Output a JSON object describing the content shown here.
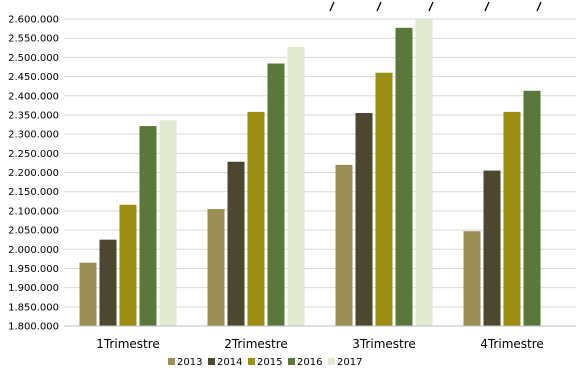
{
  "chart_data": {
    "type": "bar",
    "categories": [
      "1Trimestre",
      "2Trimestre",
      "3Trimestre",
      "4Trimestre"
    ],
    "series": [
      {
        "name": "2013",
        "color": "#9c8f56",
        "values": [
          1965000,
          2105000,
          2220000,
          2047000
        ]
      },
      {
        "name": "2014",
        "color": "#4d4630",
        "values": [
          2025000,
          2228000,
          2355000,
          2205000
        ]
      },
      {
        "name": "2015",
        "color": "#9b8e12",
        "values": [
          2116000,
          2358000,
          2460000,
          2358000
        ]
      },
      {
        "name": "2016",
        "color": "#5a783a",
        "values": [
          2321000,
          2484000,
          2577000,
          2413000
        ]
      },
      {
        "name": "2017",
        "color": "#e1ead0",
        "values": [
          2336000,
          2527000,
          2600000,
          null
        ]
      }
    ],
    "ylim": [
      1800000,
      2600000
    ],
    "ytick_step": 50000,
    "ytick_labels": [
      "1.800.000",
      "1.850.000",
      "1.900.000",
      "1.950.000",
      "2.000.000",
      "2.050.000",
      "2.100.000",
      "2.150.000",
      "2.200.000",
      "2.250.000",
      "2.300.000",
      "2.350.000",
      "2.400.000",
      "2.450.000",
      "2.500.000",
      "2.550.000",
      "2.600.000"
    ],
    "grid": true,
    "legend_position": "bottom",
    "title": "",
    "xlabel": "",
    "ylabel": ""
  }
}
